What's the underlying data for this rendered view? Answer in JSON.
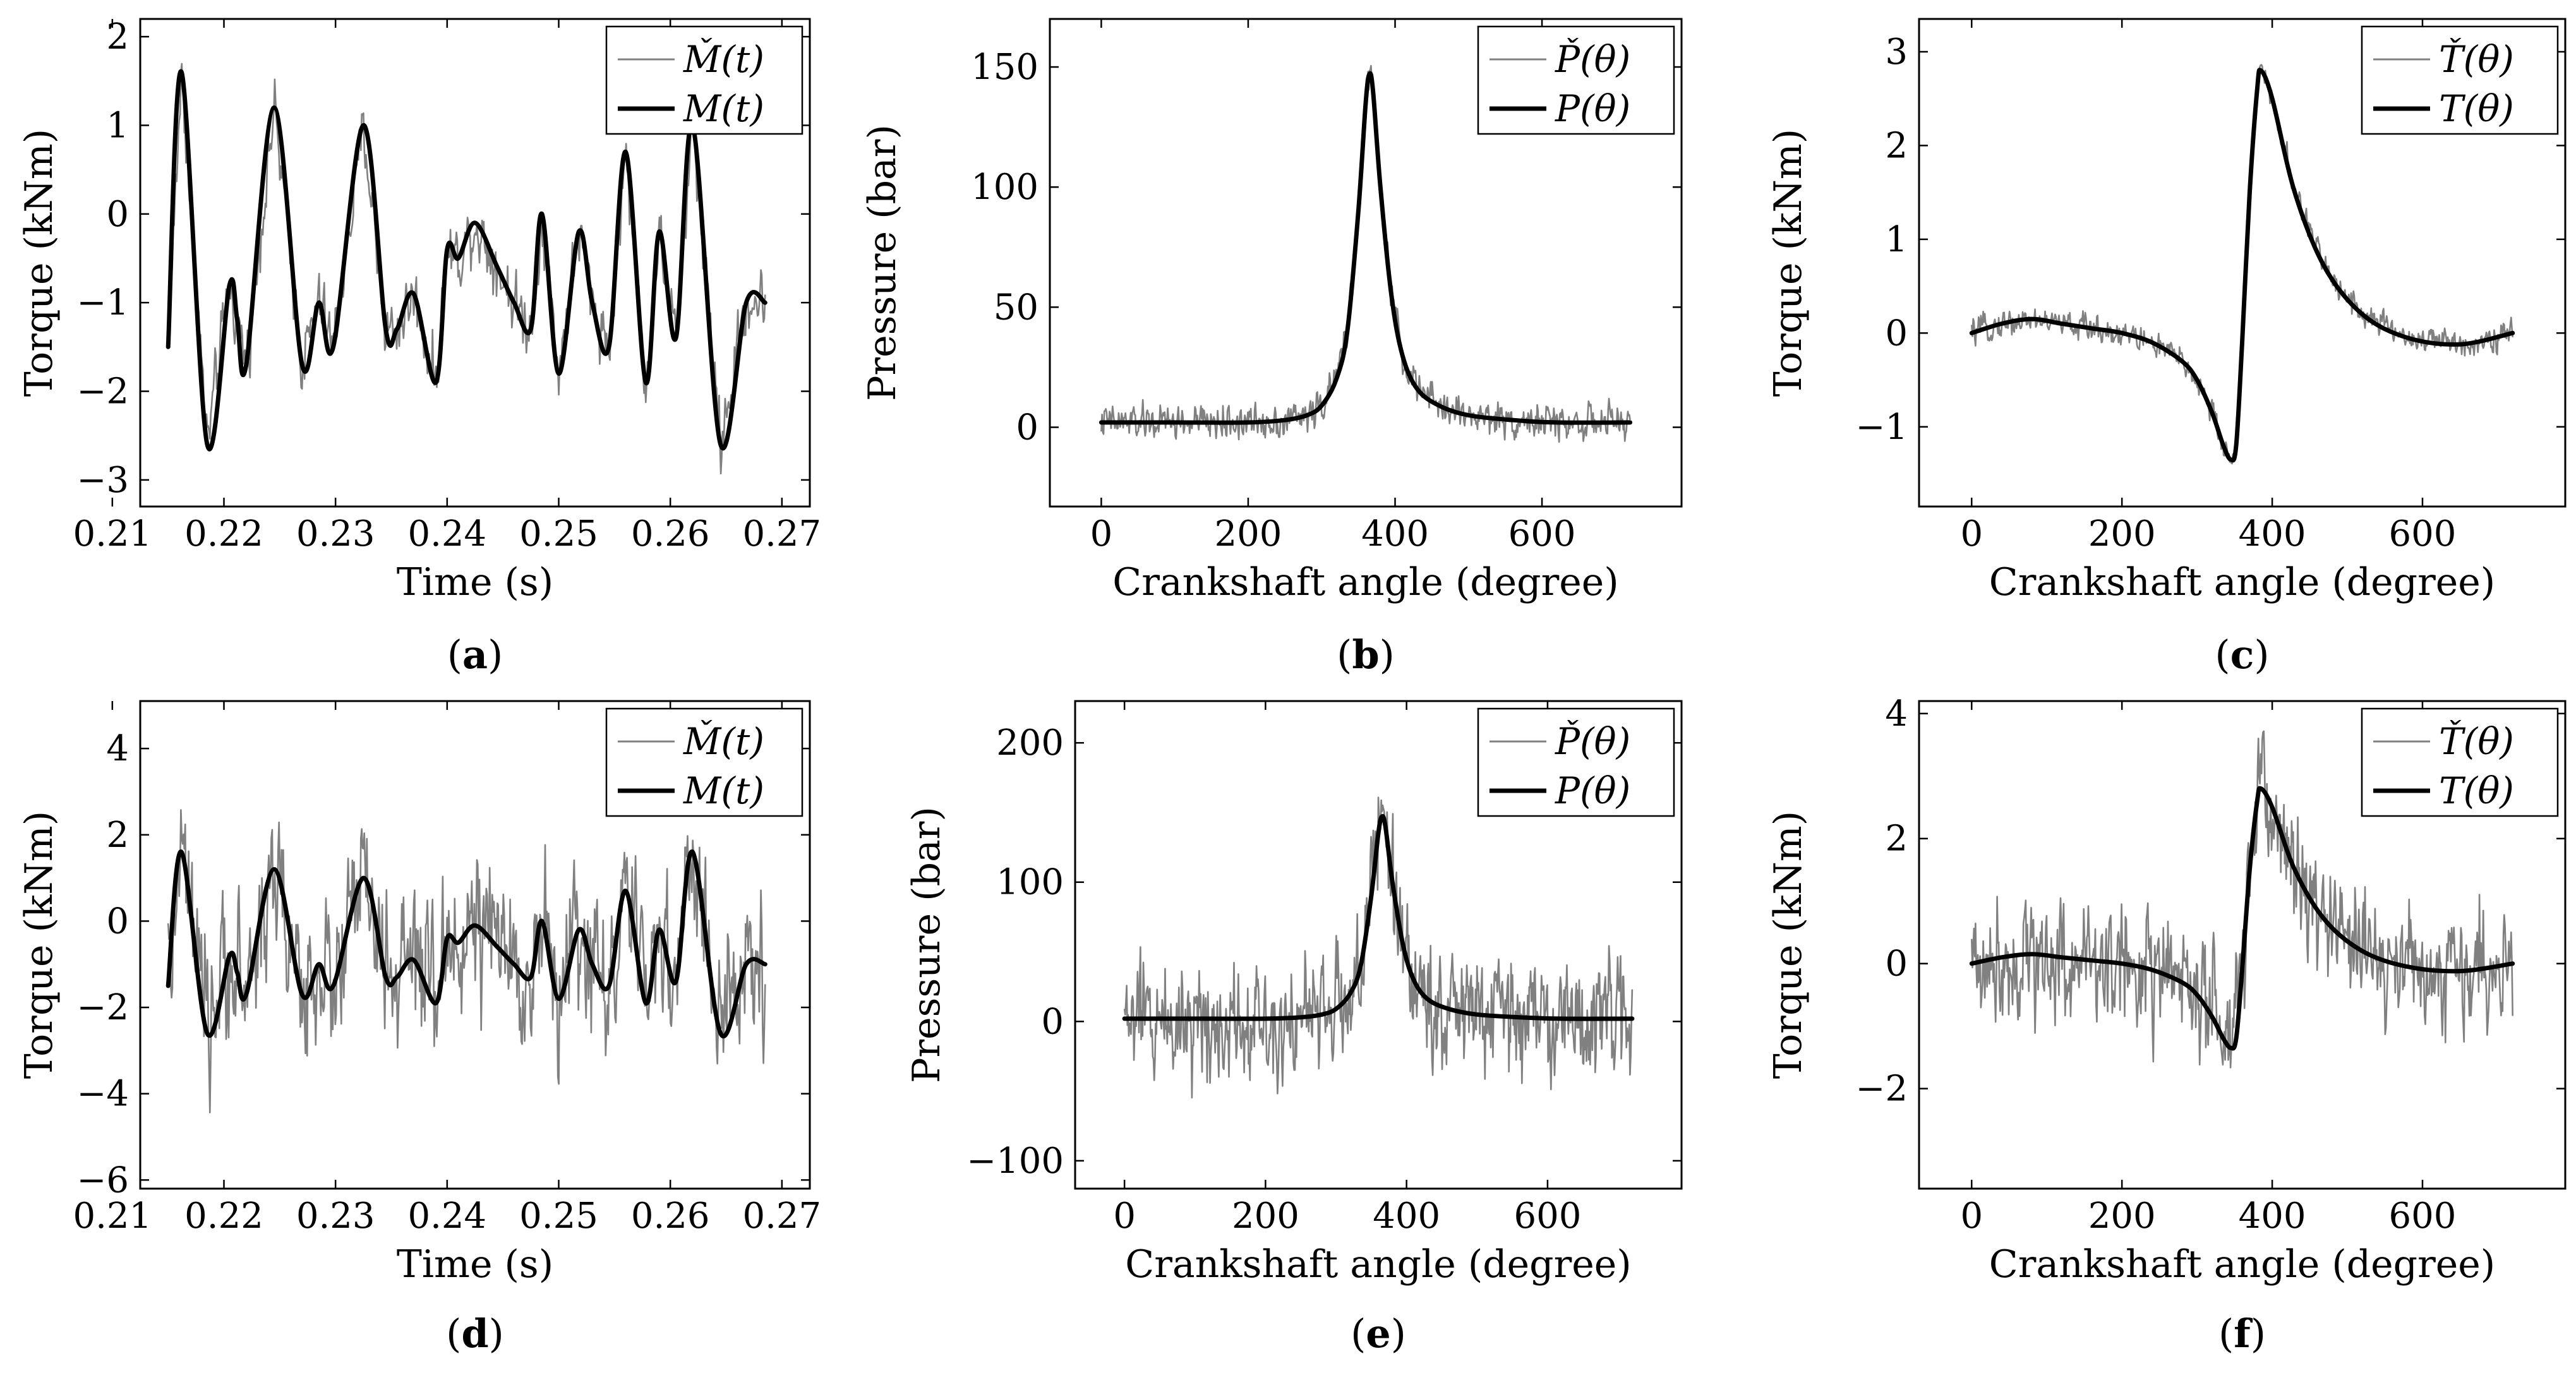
{
  "colors": {
    "noisy": "#808080",
    "smooth": "#000000",
    "axis": "#000000"
  },
  "chart_data": [
    {
      "id": "a",
      "type": "line",
      "panel_label": "a",
      "xlabel": "Time (s)",
      "ylabel": "Torque (kNm)",
      "xlim": [
        0.2125,
        0.2725
      ],
      "ylim": [
        -3.3,
        2.2
      ],
      "xticks": [
        0.21,
        0.22,
        0.23,
        0.24,
        0.25,
        0.26,
        0.27
      ],
      "xtick_labels": [
        "0.21",
        "0.22",
        "0.23",
        "0.24",
        "0.25",
        "0.26",
        "0.27"
      ],
      "yticks": [
        -3,
        -2,
        -1,
        0,
        1,
        2
      ],
      "ytick_labels": [
        "−3",
        "−2",
        "−1",
        "0",
        "1",
        "2"
      ],
      "legend_position": "top-right",
      "noise_level": 0.25,
      "series": [
        {
          "name": "M̌(t)",
          "style": "noisy"
        },
        {
          "name": "M(t)",
          "style": "smooth",
          "x": [
            0.215,
            0.2162,
            0.2185,
            0.2205,
            0.2212,
            0.222,
            0.2245,
            0.227,
            0.2285,
            0.2298,
            0.2325,
            0.2345,
            0.2355,
            0.237,
            0.239,
            0.24,
            0.241,
            0.2425,
            0.2445,
            0.246,
            0.2475,
            0.2485,
            0.25,
            0.2518,
            0.253,
            0.2545,
            0.256,
            0.2578,
            0.259,
            0.2605,
            0.262,
            0.2645,
            0.2668,
            0.2685
          ],
          "y": [
            -1.5,
            1.6,
            -2.6,
            -0.8,
            -1.2,
            -1.7,
            1.2,
            -1.7,
            -1.0,
            -1.5,
            1.0,
            -1.3,
            -1.3,
            -0.9,
            -1.9,
            -0.4,
            -0.5,
            -0.1,
            -0.6,
            -1.0,
            -1.3,
            0.0,
            -1.8,
            -0.2,
            -1.0,
            -1.5,
            0.7,
            -1.9,
            -0.2,
            -1.4,
            1.0,
            -2.6,
            -1.0,
            -1.0
          ]
        }
      ]
    },
    {
      "id": "b",
      "type": "line",
      "panel_label": "b",
      "xlabel": "Crankshaft angle (degree)",
      "ylabel": "Pressure (bar)",
      "xlim": [
        -70,
        790
      ],
      "ylim": [
        -33,
        170
      ],
      "xticks": [
        0,
        200,
        400,
        600
      ],
      "xtick_labels": [
        "0",
        "200",
        "400",
        "600"
      ],
      "yticks": [
        0,
        50,
        100,
        150
      ],
      "ytick_labels": [
        "0",
        "50",
        "100",
        "150"
      ],
      "legend_position": "top-right",
      "noise_level": 5,
      "series": [
        {
          "name": "P̌(θ)",
          "style": "noisy"
        },
        {
          "name": "P(θ)",
          "style": "smooth",
          "x": [
            0,
            100,
            200,
            250,
            280,
            300,
            320,
            335,
            350,
            360,
            365,
            370,
            380,
            395,
            410,
            430,
            460,
            500,
            560,
            620,
            720
          ],
          "y": [
            2,
            2,
            2,
            3,
            5,
            9,
            20,
            40,
            90,
            135,
            147,
            140,
            100,
            55,
            30,
            16,
            9,
            5,
            3,
            2,
            2
          ]
        }
      ]
    },
    {
      "id": "c",
      "type": "line",
      "panel_label": "c",
      "xlabel": "Crankshaft angle (degree)",
      "ylabel": "Torque (kNm)",
      "xlim": [
        -70,
        790
      ],
      "ylim": [
        -1.85,
        3.35
      ],
      "xticks": [
        0,
        200,
        400,
        600
      ],
      "xtick_labels": [
        "0",
        "200",
        "400",
        "600"
      ],
      "yticks": [
        -1,
        0,
        1,
        2,
        3
      ],
      "ytick_labels": [
        "−1",
        "0",
        "1",
        "2",
        "3"
      ],
      "legend_position": "top-right",
      "noise_level": 0.1,
      "series": [
        {
          "name": "Ť(θ)",
          "style": "noisy"
        },
        {
          "name": "T(θ)",
          "style": "smooth",
          "x": [
            0,
            40,
            80,
            120,
            160,
            200,
            240,
            280,
            300,
            320,
            335,
            345,
            352,
            360,
            370,
            380,
            385,
            400,
            430,
            470,
            520,
            580,
            650,
            720
          ],
          "y": [
            0,
            0.1,
            0.15,
            0.1,
            0.05,
            0,
            -0.1,
            -0.3,
            -0.5,
            -0.85,
            -1.2,
            -1.35,
            -1.2,
            -0.1,
            1.5,
            2.6,
            2.8,
            2.5,
            1.5,
            0.7,
            0.2,
            -0.05,
            -0.12,
            0
          ]
        }
      ]
    },
    {
      "id": "d",
      "type": "line",
      "panel_label": "d",
      "xlabel": "Time (s)",
      "ylabel": "Torque (kNm)",
      "xlim": [
        0.2125,
        0.2725
      ],
      "ylim": [
        -6.2,
        5.1
      ],
      "xticks": [
        0.21,
        0.22,
        0.23,
        0.24,
        0.25,
        0.26,
        0.27
      ],
      "xtick_labels": [
        "0.21",
        "0.22",
        "0.23",
        "0.24",
        "0.25",
        "0.26",
        "0.27"
      ],
      "yticks": [
        -6,
        -4,
        -2,
        0,
        2,
        4
      ],
      "ytick_labels": [
        "−6",
        "−4",
        "−2",
        "0",
        "2",
        "4"
      ],
      "legend_position": "top-right",
      "noise_level": 1.2,
      "series": [
        {
          "name": "M̌(t)",
          "style": "noisy"
        },
        {
          "name": "M(t)",
          "style": "smooth",
          "x": [
            0.215,
            0.2162,
            0.2185,
            0.2205,
            0.2212,
            0.222,
            0.2245,
            0.227,
            0.2285,
            0.2298,
            0.2325,
            0.2345,
            0.2355,
            0.237,
            0.239,
            0.24,
            0.241,
            0.2425,
            0.2445,
            0.246,
            0.2475,
            0.2485,
            0.25,
            0.2518,
            0.253,
            0.2545,
            0.256,
            0.2578,
            0.259,
            0.2605,
            0.262,
            0.2645,
            0.2668,
            0.2685
          ],
          "y": [
            -1.5,
            1.6,
            -2.6,
            -0.8,
            -1.2,
            -1.7,
            1.2,
            -1.7,
            -1.0,
            -1.5,
            1.0,
            -1.3,
            -1.3,
            -0.9,
            -1.9,
            -0.4,
            -0.5,
            -0.1,
            -0.6,
            -1.0,
            -1.3,
            0.0,
            -1.8,
            -0.2,
            -1.0,
            -1.5,
            0.7,
            -1.9,
            -0.2,
            -1.4,
            1.6,
            -2.6,
            -1.0,
            -1.0
          ]
        }
      ]
    },
    {
      "id": "e",
      "type": "line",
      "panel_label": "e",
      "xlabel": "Crankshaft angle (degree)",
      "ylabel": "Pressure (bar)",
      "xlim": [
        -70,
        790
      ],
      "ylim": [
        -120,
        230
      ],
      "xticks": [
        0,
        200,
        400,
        600
      ],
      "xtick_labels": [
        "0",
        "200",
        "400",
        "600"
      ],
      "yticks": [
        -100,
        0,
        100,
        200
      ],
      "ytick_labels": [
        "−100",
        "0",
        "100",
        "200"
      ],
      "legend_position": "top-right",
      "noise_level": 30,
      "series": [
        {
          "name": "P̌(θ)",
          "style": "noisy"
        },
        {
          "name": "P(θ)",
          "style": "smooth",
          "x": [
            0,
            100,
            200,
            250,
            280,
            300,
            320,
            335,
            350,
            360,
            365,
            370,
            380,
            395,
            410,
            430,
            460,
            500,
            560,
            620,
            720
          ],
          "y": [
            2,
            2,
            2,
            3,
            5,
            9,
            20,
            40,
            90,
            135,
            147,
            140,
            100,
            55,
            30,
            16,
            9,
            5,
            3,
            2,
            2
          ]
        }
      ]
    },
    {
      "id": "f",
      "type": "line",
      "panel_label": "f",
      "xlabel": "Crankshaft angle (degree)",
      "ylabel": "Torque (kNm)",
      "xlim": [
        -70,
        790
      ],
      "ylim": [
        -3.6,
        4.2
      ],
      "xticks": [
        0,
        200,
        400,
        600
      ],
      "xtick_labels": [
        "0",
        "200",
        "400",
        "600"
      ],
      "yticks": [
        -2,
        0,
        2,
        4
      ],
      "ytick_labels": [
        "−2",
        "0",
        "2",
        "4"
      ],
      "legend_position": "top-right",
      "noise_level": 0.7,
      "series": [
        {
          "name": "Ť(θ)",
          "style": "noisy"
        },
        {
          "name": "T(θ)",
          "style": "smooth",
          "x": [
            0,
            40,
            80,
            120,
            160,
            200,
            240,
            280,
            300,
            320,
            335,
            345,
            352,
            360,
            370,
            380,
            385,
            400,
            430,
            470,
            520,
            580,
            650,
            720
          ],
          "y": [
            0,
            0.1,
            0.15,
            0.1,
            0.05,
            0,
            -0.1,
            -0.3,
            -0.5,
            -0.85,
            -1.2,
            -1.35,
            -1.2,
            -0.1,
            1.5,
            2.6,
            2.8,
            2.5,
            1.5,
            0.7,
            0.2,
            -0.05,
            -0.12,
            0
          ]
        }
      ]
    }
  ]
}
